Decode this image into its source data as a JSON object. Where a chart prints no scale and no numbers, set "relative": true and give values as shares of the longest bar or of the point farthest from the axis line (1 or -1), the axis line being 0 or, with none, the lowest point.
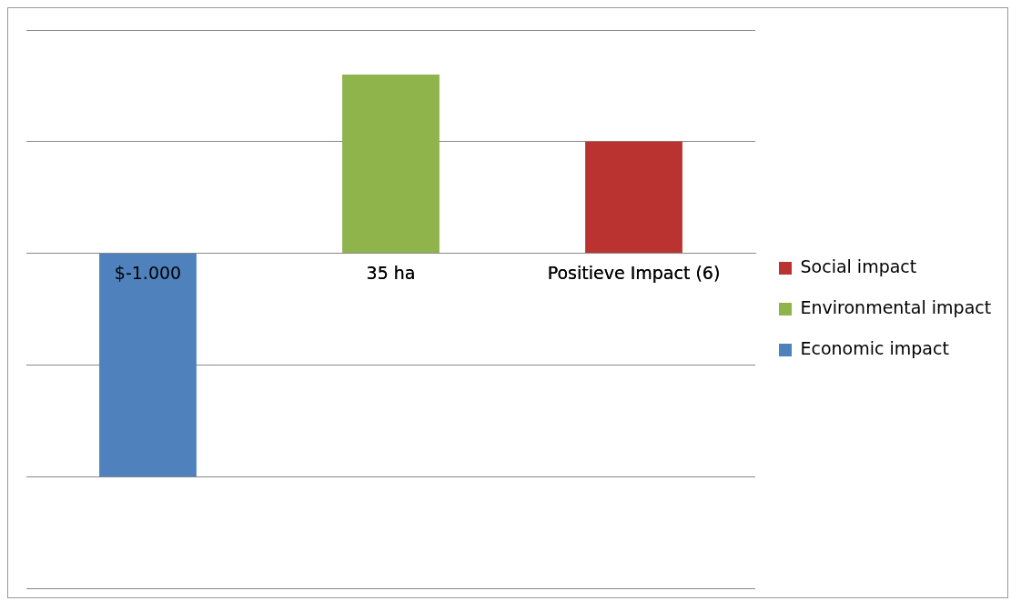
{
  "chart_data": {
    "type": "bar",
    "relative": true,
    "grid": "y",
    "legend": "right",
    "categories": [
      "$-1.000",
      "35 ha",
      "Positieve Impact (6)"
    ],
    "series": [
      {
        "name": "Economic impact",
        "color": "#4f81bd",
        "values": [
          -1,
          null,
          null
        ]
      },
      {
        "name": "Environmental impact",
        "color": "#8eb44b",
        "values": [
          null,
          0.8,
          null
        ]
      },
      {
        "name": "Social impact",
        "color": "#bb3330",
        "values": [
          null,
          null,
          0.5
        ]
      }
    ]
  }
}
